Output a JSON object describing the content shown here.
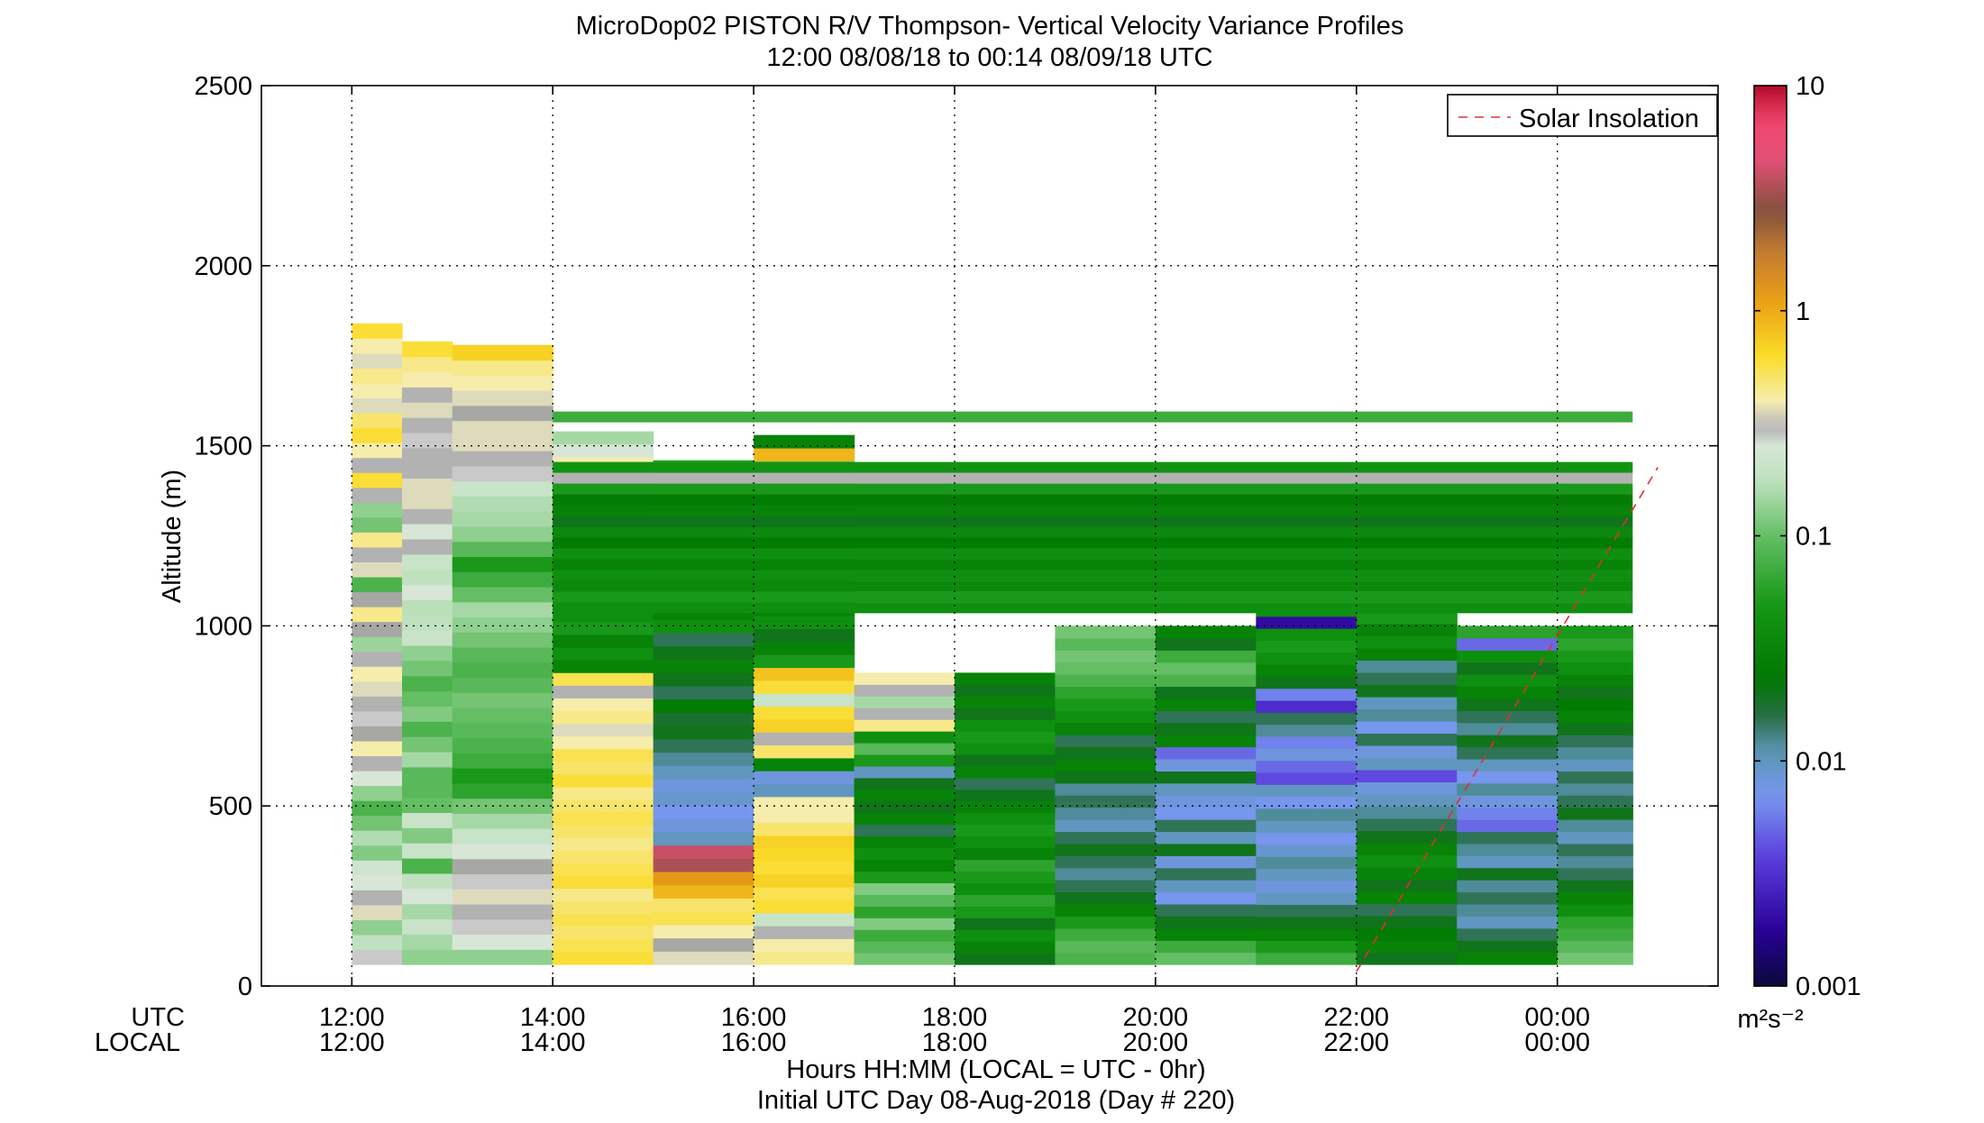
{
  "chart_data": {
    "type": "heatmap",
    "title": "MicroDop02 PISTON R/V Thompson- Vertical Velocity Variance Profiles",
    "subtitle": "12:00 08/08/18 to 00:14 08/09/18  UTC",
    "ylabel": "Altitude (m)",
    "xlabel": "Hours HH:MM  (LOCAL = UTC - 0hr)",
    "footer": "Initial UTC Day 08-Aug-2018 (Day # 220)",
    "x_row_labels": [
      "UTC",
      "LOCAL"
    ],
    "x_ticks_utc": [
      "12:00",
      "14:00",
      "16:00",
      "18:00",
      "20:00",
      "22:00",
      "00:00"
    ],
    "x_ticks_local": [
      "12:00",
      "14:00",
      "16:00",
      "18:00",
      "20:00",
      "22:00",
      "00:00"
    ],
    "x_tick_hours": [
      12,
      14,
      16,
      18,
      20,
      22,
      24
    ],
    "xlim_hours": [
      11.1,
      25.6
    ],
    "yticks": [
      "0",
      "500",
      "1000",
      "1500",
      "2000",
      "2500"
    ],
    "ylim": [
      0,
      2500
    ],
    "grid": true,
    "legend": {
      "entries": [
        "Solar Insolation"
      ],
      "location": "top-right",
      "line_color": "#e03030"
    },
    "colorbar": {
      "scale": "log",
      "range": [
        0.001,
        10
      ],
      "tick_labels": [
        "0.001",
        "0.01",
        "0.1",
        "1",
        "10"
      ],
      "unit_label": "m²s⁻²"
    },
    "solar_line": {
      "x_hours": [
        22.0,
        25.0
      ],
      "altitude_m": [
        40,
        1440
      ]
    },
    "profiles": [
      {
        "start": 12.0,
        "end": 12.5,
        "top_m": 1840,
        "values": [
          0.28,
          0.18,
          0.13,
          0.35,
          0.3,
          0.25,
          0.22,
          0.12,
          0.16,
          0.11,
          0.08,
          0.13,
          0.25,
          0.3,
          0.4,
          0.32,
          0.28,
          0.3,
          0.35,
          0.4,
          0.3,
          0.14,
          0.32,
          0.45,
          0.32,
          0.08,
          0.35,
          0.3,
          0.45,
          0.11,
          0.13,
          0.3,
          0.6,
          0.3,
          0.4,
          0.6,
          0.5,
          0.35,
          0.4,
          0.45,
          0.35,
          0.4,
          0.6
        ]
      },
      {
        "start": 12.5,
        "end": 13.0,
        "top_m": 1790,
        "values": [
          0.13,
          0.15,
          0.2,
          0.15,
          0.25,
          0.18,
          0.08,
          0.2,
          0.12,
          0.2,
          0.1,
          0.09,
          0.09,
          0.15,
          0.11,
          0.08,
          0.12,
          0.1,
          0.08,
          0.11,
          0.13,
          0.2,
          0.18,
          0.17,
          0.25,
          0.18,
          0.2,
          0.3,
          0.25,
          0.3,
          0.35,
          0.35,
          0.3,
          0.3,
          0.28,
          0.3,
          0.35,
          0.3,
          0.4,
          0.45,
          0.6
        ]
      },
      {
        "start": 13.0,
        "end": 14.0,
        "top_m": 1780,
        "values": [
          0.13,
          0.25,
          0.28,
          0.3,
          0.35,
          0.28,
          0.32,
          0.25,
          0.2,
          0.15,
          0.11,
          0.06,
          0.05,
          0.07,
          0.08,
          0.09,
          0.1,
          0.11,
          0.09,
          0.08,
          0.09,
          0.11,
          0.13,
          0.15,
          0.1,
          0.07,
          0.05,
          0.09,
          0.13,
          0.15,
          0.16,
          0.2,
          0.28,
          0.3,
          0.35,
          0.35,
          0.32,
          0.35,
          0.4,
          0.45,
          0.7
        ]
      },
      {
        "start": 14.0,
        "end": 15.0,
        "top_m": 1540,
        "values": [
          0.6,
          0.55,
          0.5,
          0.55,
          0.5,
          0.45,
          0.6,
          0.55,
          0.5,
          0.45,
          0.5,
          0.55,
          0.5,
          0.45,
          0.6,
          0.5,
          0.55,
          0.4,
          0.35,
          0.45,
          0.4,
          0.3,
          0.55,
          0.03,
          0.04,
          0.03,
          0.05,
          0.04,
          0.06,
          0.03,
          0.02,
          0.04,
          0.03,
          0.02,
          0.03,
          0.015,
          1.2,
          0.015,
          1.0,
          0.4,
          0.25,
          0.15
        ]
      },
      {
        "start": 15.0,
        "end": 16.0,
        "top_m": 1460,
        "values": [
          0.35,
          0.32,
          0.4,
          0.55,
          0.5,
          0.9,
          1.2,
          3.5,
          4.0,
          0.01,
          0.008,
          0.007,
          0.009,
          0.008,
          0.01,
          0.012,
          0.015,
          0.02,
          0.018,
          0.025,
          0.015,
          0.02,
          0.03,
          0.02,
          0.015,
          0.04,
          0.03,
          0.05,
          0.02,
          0.015,
          0.04,
          0.02,
          0.015,
          0.03,
          0.015,
          1.2,
          0.35,
          0.06
        ]
      },
      {
        "start": 16.0,
        "end": 17.0,
        "top_m": 1530,
        "values": [
          0.45,
          0.4,
          0.3,
          0.2,
          0.6,
          0.55,
          0.7,
          0.6,
          0.65,
          0.7,
          0.5,
          0.4,
          0.4,
          0.01,
          0.008,
          0.03,
          0.5,
          0.3,
          0.7,
          0.6,
          0.2,
          0.6,
          0.8,
          0.05,
          0.03,
          0.02,
          0.04,
          0.03,
          0.05,
          0.02,
          0.02,
          0.03,
          0.02,
          0.015,
          0.03,
          0.02,
          0.04,
          0.05,
          0.1,
          0.9,
          0.03
        ]
      },
      {
        "start": 17.0,
        "end": 18.0,
        "top_m": 870,
        "values": [
          0.11,
          0.09,
          0.07,
          0.12,
          0.06,
          0.09,
          0.12,
          0.05,
          0.03,
          0.04,
          0.03,
          0.015,
          0.03,
          0.02,
          0.03,
          0.02,
          0.01,
          0.05,
          0.09,
          0.04,
          0.45,
          0.3,
          0.15,
          0.3,
          0.4
        ]
      },
      {
        "start": 18.0,
        "end": 19.0,
        "top_m": 870,
        "values": [
          0.02,
          0.03,
          0.04,
          0.02,
          0.05,
          0.06,
          0.04,
          0.05,
          0.06,
          0.03,
          0.04,
          0.05,
          0.04,
          0.03,
          0.02,
          0.015,
          0.03,
          0.02,
          0.04,
          0.05,
          0.04,
          0.02,
          0.03,
          0.02,
          0.03
        ]
      },
      {
        "start": 19.0,
        "end": 20.0,
        "top_m": 1000,
        "values": [
          0.08,
          0.09,
          0.07,
          0.05,
          0.03,
          0.02,
          0.015,
          0.012,
          0.015,
          0.02,
          0.015,
          0.01,
          0.012,
          0.015,
          0.012,
          0.02,
          0.03,
          0.02,
          0.015,
          0.03,
          0.04,
          0.05,
          0.06,
          0.08,
          0.1,
          0.11,
          0.09,
          0.11
        ]
      },
      {
        "start": 20.0,
        "end": 21.0,
        "top_m": 1000,
        "values": [
          0.1,
          0.07,
          0.03,
          0.02,
          0.015,
          0.007,
          0.01,
          0.015,
          0.008,
          0.02,
          0.01,
          0.015,
          0.007,
          0.008,
          0.01,
          0.02,
          0.008,
          0.005,
          0.03,
          0.02,
          0.015,
          0.03,
          0.02,
          0.08,
          0.1,
          0.07,
          0.02,
          0.03
        ]
      },
      {
        "start": 21.0,
        "end": 22.0,
        "top_m": 1060,
        "values": [
          0.07,
          0.05,
          0.03,
          0.02,
          0.015,
          0.01,
          0.008,
          0.01,
          0.012,
          0.009,
          0.007,
          0.01,
          0.012,
          0.007,
          0.01,
          0.004,
          0.005,
          0.008,
          0.006,
          0.012,
          0.015,
          0.003,
          0.006,
          0.02,
          0.03,
          0.04,
          0.05,
          0.04,
          0.002,
          0.04
        ]
      },
      {
        "start": 22.0,
        "end": 23.0,
        "top_m": 1040,
        "values": [
          0.02,
          0.03,
          0.025,
          0.02,
          0.015,
          0.03,
          0.02,
          0.03,
          0.04,
          0.03,
          0.02,
          0.015,
          0.012,
          0.01,
          0.008,
          0.004,
          0.01,
          0.008,
          0.015,
          0.007,
          0.012,
          0.01,
          0.02,
          0.015,
          0.012,
          0.03,
          0.04,
          0.03,
          0.05
        ]
      },
      {
        "start": 23.0,
        "end": 24.0,
        "top_m": 1000,
        "values": [
          0.03,
          0.02,
          0.015,
          0.01,
          0.012,
          0.015,
          0.012,
          0.02,
          0.01,
          0.012,
          0.015,
          0.005,
          0.006,
          0.008,
          0.012,
          0.007,
          0.01,
          0.015,
          0.02,
          0.012,
          0.015,
          0.02,
          0.03,
          0.04,
          0.02,
          0.04,
          0.005,
          0.06
        ]
      },
      {
        "start": 24.0,
        "end": 24.75,
        "top_m": 1000,
        "values": [
          0.11,
          0.09,
          0.07,
          0.06,
          0.04,
          0.03,
          0.02,
          0.015,
          0.012,
          0.015,
          0.01,
          0.012,
          0.02,
          0.015,
          0.012,
          0.015,
          0.01,
          0.012,
          0.015,
          0.02,
          0.03,
          0.025,
          0.02,
          0.03,
          0.04,
          0.05,
          0.06,
          0.05
        ]
      }
    ],
    "upper_layers": {
      "x_range_hours": [
        14.0,
        24.75
      ],
      "layers": [
        {
          "altitude_m": 1050,
          "value": 0.04
        },
        {
          "altitude_m": 1080,
          "value": 0.05
        },
        {
          "altitude_m": 1110,
          "value": 0.035
        },
        {
          "altitude_m": 1140,
          "value": 0.04
        },
        {
          "altitude_m": 1170,
          "value": 0.03
        },
        {
          "altitude_m": 1200,
          "value": 0.04
        },
        {
          "altitude_m": 1230,
          "value": 0.025
        },
        {
          "altitude_m": 1260,
          "value": 0.035
        },
        {
          "altitude_m": 1290,
          "value": 0.02
        },
        {
          "altitude_m": 1320,
          "value": 0.03
        },
        {
          "altitude_m": 1350,
          "value": 0.025
        },
        {
          "altitude_m": 1380,
          "value": 0.05
        },
        {
          "altitude_m": 1410,
          "value": 0.3
        },
        {
          "altitude_m": 1440,
          "value": 0.045
        },
        {
          "altitude_m": 1580,
          "value": 0.07
        }
      ]
    }
  }
}
